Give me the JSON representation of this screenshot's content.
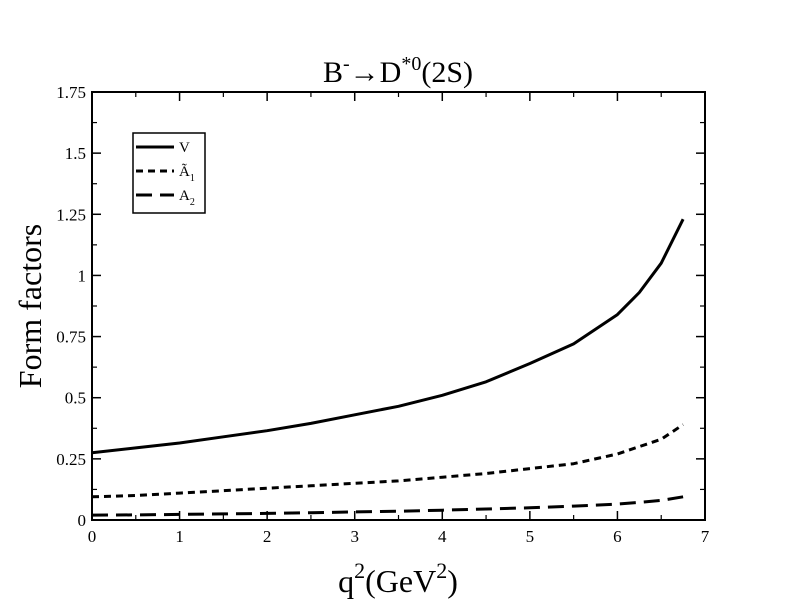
{
  "chart_data": {
    "type": "line",
    "title": {
      "particle_b": "B",
      "sup_minus": "-",
      "arrow": "→",
      "particle_d": "D",
      "sup_star0": "*0",
      "state": "(2S)"
    },
    "xlabel": {
      "q": "q",
      "sup_2": "2",
      "unit_open": "(GeV",
      "unit_sup": "2",
      "unit_close": ")"
    },
    "ylabel": "Form factors",
    "xlim": [
      0,
      7
    ],
    "ylim": [
      0,
      1.75
    ],
    "x_ticks": [
      "0",
      "1",
      "2",
      "3",
      "4",
      "5",
      "6",
      "7"
    ],
    "y_ticks": [
      "0",
      "0.25",
      "0.5",
      "0.75",
      "1",
      "1.25",
      "1.5",
      "1.75"
    ],
    "grid": false,
    "legend_position": "top-left",
    "series": [
      {
        "name": "V",
        "legend": {
          "base": "V",
          "sub": ""
        },
        "style": "solid",
        "x": [
          0,
          0.5,
          1,
          1.5,
          2,
          2.5,
          3,
          3.5,
          4,
          4.5,
          5,
          5.5,
          6,
          6.25,
          6.5,
          6.75
        ],
        "y": [
          0.275,
          0.295,
          0.315,
          0.34,
          0.365,
          0.395,
          0.43,
          0.465,
          0.51,
          0.565,
          0.64,
          0.72,
          0.84,
          0.93,
          1.05,
          1.23
        ]
      },
      {
        "name": "Ã1",
        "legend": {
          "base": "Ã",
          "sub": "1"
        },
        "style": "dotted",
        "x": [
          0,
          0.5,
          1,
          1.5,
          2,
          2.5,
          3,
          3.5,
          4,
          4.5,
          5,
          5.5,
          6,
          6.25,
          6.5,
          6.75
        ],
        "y": [
          0.095,
          0.1,
          0.11,
          0.12,
          0.13,
          0.14,
          0.15,
          0.16,
          0.175,
          0.19,
          0.21,
          0.23,
          0.27,
          0.3,
          0.33,
          0.39
        ]
      },
      {
        "name": "A2",
        "legend": {
          "base": "A",
          "sub": "2"
        },
        "style": "dashed",
        "x": [
          0,
          0.5,
          1,
          1.5,
          2,
          2.5,
          3,
          3.5,
          4,
          4.5,
          5,
          5.5,
          6,
          6.25,
          6.5,
          6.75
        ],
        "y": [
          0.02,
          0.021,
          0.023,
          0.025,
          0.027,
          0.03,
          0.033,
          0.036,
          0.04,
          0.045,
          0.05,
          0.057,
          0.065,
          0.072,
          0.08,
          0.095
        ]
      }
    ]
  }
}
